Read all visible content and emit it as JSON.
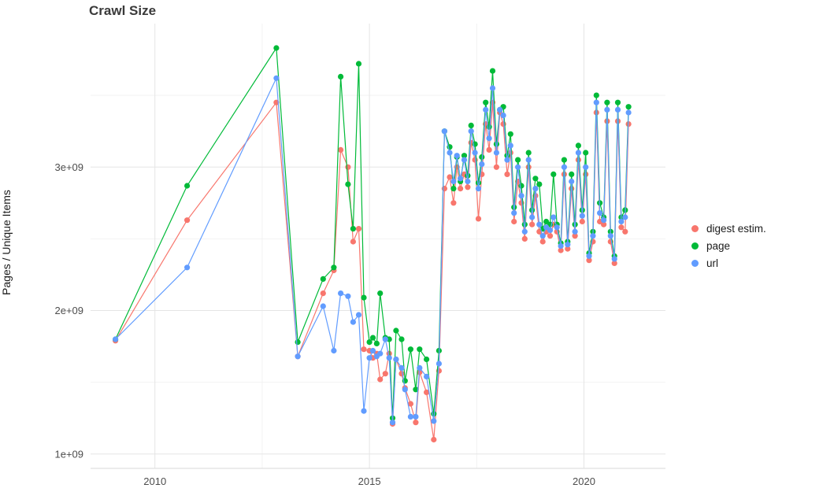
{
  "title": "Crawl Size",
  "ylabel": "Pages / Unique Items",
  "legend": {
    "position": "right"
  },
  "chart_data": {
    "type": "line",
    "title": "Crawl Size",
    "xlabel": "",
    "ylabel": "Pages / Unique Items",
    "y_unit": "items (values in billions, 1 = 1e+09)",
    "grid": true,
    "legend_position": "right",
    "background_color": "#ffffff",
    "grid_major_color": "#e5e5e5",
    "grid_minor_color": "#f2f2f2",
    "axis_text_color": "#4d4d4d",
    "xlim": [
      2008.5,
      2021.9
    ],
    "ylim_billions": [
      0.9,
      4.0
    ],
    "xticks": [
      2010,
      2015,
      2020
    ],
    "xtick_labels": [
      "2010",
      "2015",
      "2020"
    ],
    "xticks_minor": [
      2012.5,
      2017.5
    ],
    "yticks_billions": [
      1,
      2,
      3
    ],
    "ytick_labels": [
      "1e+09",
      "2e+09",
      "3e+09"
    ],
    "yticks_minor_billions": [
      1.5,
      2.5,
      3.5
    ],
    "x": [
      2009.08,
      2010.75,
      2012.83,
      2013.33,
      2013.92,
      2014.17,
      2014.33,
      2014.5,
      2014.62,
      2014.75,
      2014.87,
      2015.0,
      2015.08,
      2015.17,
      2015.25,
      2015.37,
      2015.46,
      2015.54,
      2015.62,
      2015.75,
      2015.83,
      2015.96,
      2016.08,
      2016.17,
      2016.33,
      2016.5,
      2016.62,
      2016.75,
      2016.87,
      2016.96,
      2017.04,
      2017.12,
      2017.21,
      2017.29,
      2017.37,
      2017.46,
      2017.54,
      2017.62,
      2017.71,
      2017.79,
      2017.87,
      2017.96,
      2018.04,
      2018.12,
      2018.21,
      2018.29,
      2018.37,
      2018.46,
      2018.54,
      2018.62,
      2018.71,
      2018.79,
      2018.87,
      2018.96,
      2019.04,
      2019.12,
      2019.21,
      2019.29,
      2019.37,
      2019.46,
      2019.54,
      2019.62,
      2019.71,
      2019.79,
      2019.87,
      2019.96,
      2020.04,
      2020.12,
      2020.21,
      2020.29,
      2020.37,
      2020.46,
      2020.54,
      2020.62,
      2020.71,
      2020.79,
      2020.87,
      2020.96,
      2021.04
    ],
    "series": [
      {
        "name": "digest estim.",
        "color": "#F8766D",
        "values_billions": [
          1.79,
          2.63,
          3.45,
          1.68,
          2.12,
          2.28,
          3.12,
          3.0,
          2.48,
          2.57,
          1.73,
          1.72,
          1.67,
          1.7,
          1.52,
          1.56,
          1.7,
          1.21,
          1.66,
          1.56,
          1.46,
          1.35,
          1.22,
          1.57,
          1.43,
          1.1,
          1.58,
          2.85,
          2.93,
          2.75,
          3.0,
          2.85,
          2.95,
          2.86,
          3.17,
          3.05,
          2.64,
          2.95,
          3.3,
          3.12,
          3.45,
          3.0,
          3.38,
          3.3,
          2.95,
          3.1,
          2.62,
          2.9,
          2.75,
          2.5,
          3.0,
          2.6,
          2.8,
          2.55,
          2.48,
          2.55,
          2.52,
          2.6,
          2.55,
          2.42,
          2.95,
          2.43,
          2.85,
          2.52,
          3.05,
          2.62,
          2.95,
          2.35,
          2.48,
          3.38,
          2.62,
          2.6,
          3.32,
          2.48,
          2.33,
          3.32,
          2.58,
          2.55,
          3.3
        ]
      },
      {
        "name": "page",
        "color": "#00BA38",
        "values_billions": [
          1.8,
          2.87,
          3.83,
          1.78,
          2.22,
          2.3,
          3.63,
          2.88,
          2.57,
          3.72,
          2.09,
          1.78,
          1.81,
          1.77,
          2.12,
          1.81,
          1.8,
          1.25,
          1.86,
          1.8,
          1.51,
          1.73,
          1.45,
          1.73,
          1.66,
          1.28,
          1.72,
          3.25,
          3.14,
          2.85,
          3.07,
          2.9,
          3.08,
          2.94,
          3.29,
          3.16,
          2.89,
          3.07,
          3.45,
          3.28,
          3.67,
          3.16,
          3.4,
          3.42,
          3.08,
          3.23,
          2.72,
          3.05,
          2.87,
          2.6,
          3.1,
          2.7,
          2.92,
          2.88,
          2.57,
          2.62,
          2.6,
          2.95,
          2.6,
          2.47,
          3.05,
          2.48,
          2.95,
          2.6,
          3.15,
          2.7,
          3.1,
          2.4,
          2.55,
          3.5,
          2.75,
          2.65,
          3.45,
          2.55,
          2.38,
          3.45,
          2.65,
          2.7,
          3.42
        ]
      },
      {
        "name": "url",
        "color": "#619CFF",
        "values_billions": [
          1.8,
          2.3,
          3.62,
          1.68,
          2.03,
          1.72,
          2.12,
          2.1,
          1.92,
          1.97,
          1.3,
          1.67,
          1.72,
          1.68,
          1.7,
          1.8,
          1.67,
          1.22,
          1.66,
          1.6,
          1.45,
          1.26,
          1.26,
          1.6,
          1.54,
          1.23,
          1.63,
          3.25,
          3.1,
          2.9,
          3.08,
          2.92,
          3.05,
          2.9,
          3.25,
          3.1,
          2.85,
          3.02,
          3.4,
          3.2,
          3.55,
          3.1,
          3.4,
          3.36,
          3.05,
          3.15,
          2.68,
          3.0,
          2.8,
          2.55,
          3.05,
          2.65,
          2.85,
          2.6,
          2.52,
          2.58,
          2.56,
          2.65,
          2.58,
          2.45,
          3.0,
          2.46,
          2.9,
          2.55,
          3.1,
          2.66,
          3.0,
          2.38,
          2.52,
          3.45,
          2.68,
          2.63,
          3.4,
          2.52,
          2.36,
          3.4,
          2.62,
          2.65,
          3.38
        ]
      }
    ]
  }
}
